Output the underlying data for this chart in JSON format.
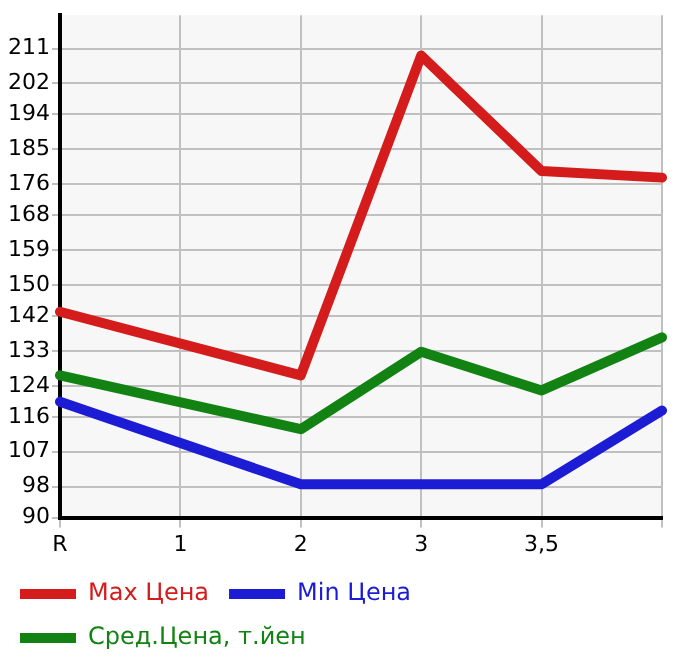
{
  "chart_data": {
    "type": "line",
    "categories": [
      "R",
      "1",
      "2",
      "3",
      "3,5",
      null
    ],
    "series": [
      {
        "name": "Max Цена",
        "color": "#d41c1c",
        "values": [
          143.1,
          null,
          126.7,
          209.2,
          179.4,
          177.7
        ]
      },
      {
        "name": "Min Цена",
        "color": "#1c1cd4",
        "values": [
          119.9,
          null,
          98.6,
          98.6,
          98.6,
          117.6
        ]
      },
      {
        "name": "Сред.Цена, т.йен",
        "color": "#128212",
        "values": [
          126.7,
          null,
          112.8,
          132.8,
          122.8,
          136.5
        ]
      }
    ],
    "ylim": [
      90,
      219.6
    ],
    "yticks": [
      90,
      98,
      107,
      116,
      124,
      133,
      142,
      150,
      159,
      168,
      176,
      185,
      194,
      202,
      211
    ],
    "grid": true,
    "legend": "bottom",
    "marker": "none",
    "line_style": "solid"
  }
}
